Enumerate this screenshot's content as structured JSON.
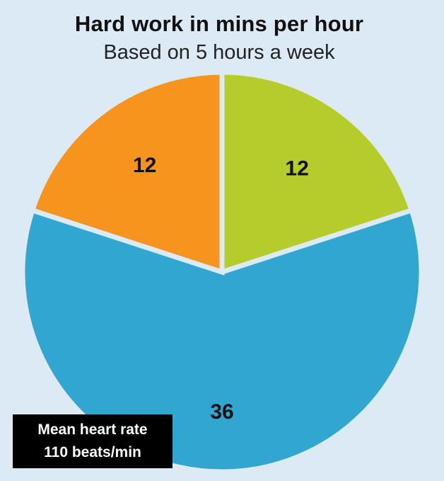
{
  "title": "Hard work in mins per hour",
  "subtitle": "Based on 5 hours a week",
  "badge": {
    "line1": "Mean heart rate",
    "line2": "110 beats/min"
  },
  "chart_data": {
    "type": "pie",
    "title": "Hard work in mins per hour",
    "subtitle": "Based on 5 hours a week",
    "start_angle_deg": 0,
    "direction": "clockwise",
    "slices": [
      {
        "label": "12",
        "value": 12,
        "color": "#b5cc2a"
      },
      {
        "label": "36",
        "value": 36,
        "color": "#31a6d1"
      },
      {
        "label": "12",
        "value": 12,
        "color": "#f7941e"
      }
    ],
    "background_color": "#dbeaf5",
    "separator_color": "#dbeaf5"
  }
}
